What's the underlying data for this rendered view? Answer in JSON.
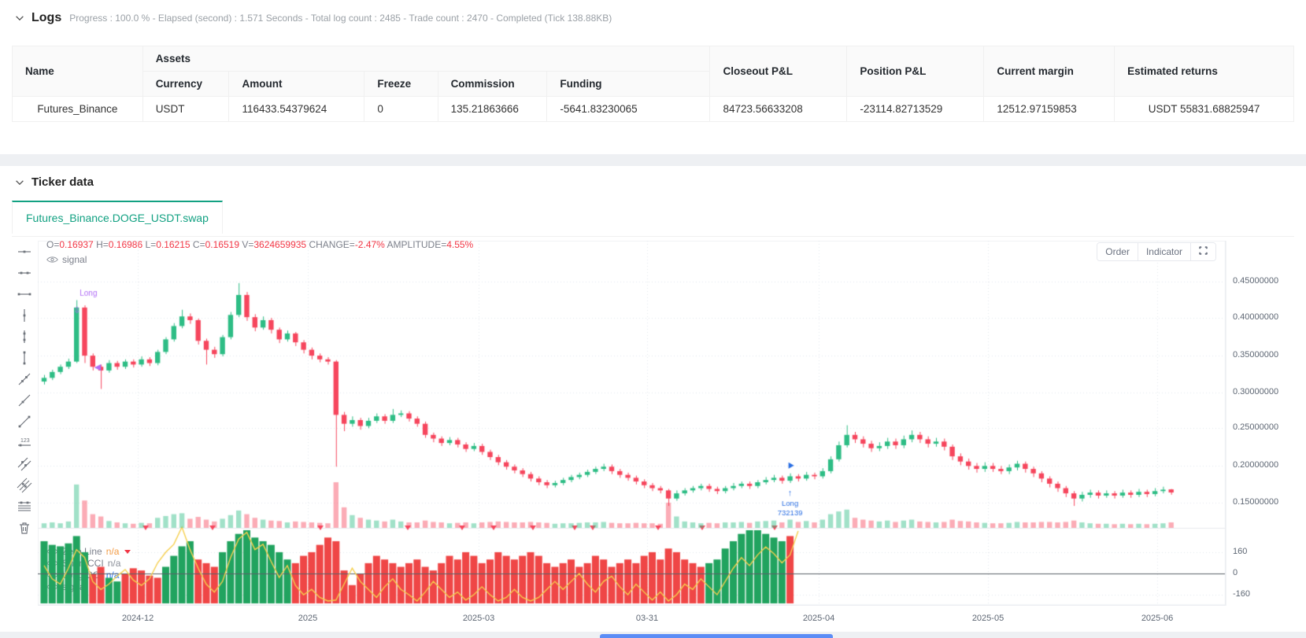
{
  "logs": {
    "title": "Logs",
    "subtitle": "Progress : 100.0 % - Elapsed (second) : 1.571 Seconds - Total log count : 2485 - Trade count : 2470 - Completed (Tick 138.88KB)"
  },
  "account_table": {
    "headers": {
      "name": "Name",
      "assets": "Assets",
      "currency": "Currency",
      "amount": "Amount",
      "freeze": "Freeze",
      "commission": "Commission",
      "funding": "Funding",
      "closeout_pnl": "Closeout P&L",
      "position_pnl": "Position P&L",
      "current_margin": "Current margin",
      "estimated_returns": "Estimated returns"
    },
    "row": {
      "name": "Futures_Binance",
      "currency": "USDT",
      "amount": "116433.54379624",
      "freeze": "0",
      "commission": "135.21863666",
      "funding": "-5641.83230065",
      "closeout_pnl": "84723.56633208",
      "position_pnl": "-23114.82713529",
      "current_margin": "12512.97159853",
      "estimated_returns": "USDT 55831.68825947"
    }
  },
  "ticker": {
    "title": "Ticker data",
    "tab": "Futures_Binance.DOGE_USDT.swap"
  },
  "chart": {
    "ohlc": {
      "o": "O=",
      "ov": "0.16937",
      "h": "H=",
      "hv": "0.16986",
      "l": "L=",
      "lv": "0.16215",
      "c": "C=",
      "cv": "0.16519",
      "v": "V=",
      "vv": "3624659935",
      "chg": "CHANGE=",
      "chgv": "-2.47%",
      "amp": "AMPLITUDE=",
      "ampv": "4.55%"
    },
    "signal_label": "signal",
    "buttons": {
      "order": "Order",
      "indicator": "Indicator"
    },
    "price_axis": [
      "0.45000000",
      "0.40000000",
      "0.35000000",
      "0.30000000",
      "0.25000000",
      "0.20000000",
      "0.15000000"
    ],
    "cci_axis": [
      "160",
      "0",
      "-160"
    ],
    "x_axis": [
      "2024-12",
      "2025",
      "2025-03",
      "03-31",
      "2025-04",
      "2025-05",
      "2025-06"
    ],
    "indicator_legend": [
      {
        "name": "Zero Line",
        "value": "n/a"
      },
      {
        "name": "Short CCI",
        "value": "n/a"
      },
      {
        "name": "Long CCI",
        "value": "n/a"
      },
      {
        "name": "signal",
        "value": ""
      }
    ],
    "colors": {
      "up": "#2ebd85",
      "down": "#f6465d",
      "vol_up": "rgba(46,189,133,0.45)",
      "vol_down": "rgba(246,70,93,0.45)",
      "cci_green": "#21a35f",
      "cci_red": "#ef4646",
      "cci_line": "#f5cf4d",
      "purple": "#b06df5",
      "blue": "#2b6fe3",
      "grid": "#e3e7ec",
      "zero_line": "#5b6168"
    }
  },
  "chart_data": {
    "type": "candlestick",
    "symbol": "Futures_Binance.DOGE_USDT.swap",
    "x_range": [
      "2024-11",
      "2025-06"
    ],
    "price_range": [
      0.13,
      0.47
    ],
    "cci_range": [
      -260,
      380
    ],
    "note": "values in candles are [open, high, low, close, relative_volume]",
    "candles": [
      [
        0.315,
        0.324,
        0.311,
        0.32,
        0.1
      ],
      [
        0.32,
        0.331,
        0.317,
        0.328,
        0.12
      ],
      [
        0.328,
        0.338,
        0.325,
        0.335,
        0.1
      ],
      [
        0.335,
        0.346,
        0.332,
        0.342,
        0.14
      ],
      [
        0.342,
        0.425,
        0.34,
        0.415,
        0.95
      ],
      [
        0.415,
        0.418,
        0.34,
        0.35,
        0.6
      ],
      [
        0.35,
        0.353,
        0.33,
        0.335,
        0.3
      ],
      [
        0.335,
        0.338,
        0.305,
        0.33,
        0.25
      ],
      [
        0.33,
        0.344,
        0.327,
        0.34,
        0.15
      ],
      [
        0.34,
        0.343,
        0.331,
        0.335,
        0.12
      ],
      [
        0.335,
        0.345,
        0.332,
        0.342,
        0.1
      ],
      [
        0.342,
        0.345,
        0.334,
        0.338,
        0.09
      ],
      [
        0.338,
        0.349,
        0.335,
        0.345,
        0.11
      ],
      [
        0.345,
        0.348,
        0.336,
        0.34,
        0.1
      ],
      [
        0.34,
        0.358,
        0.337,
        0.355,
        0.22
      ],
      [
        0.355,
        0.375,
        0.352,
        0.372,
        0.26
      ],
      [
        0.372,
        0.394,
        0.369,
        0.39,
        0.3
      ],
      [
        0.39,
        0.412,
        0.387,
        0.403,
        0.32
      ],
      [
        0.403,
        0.407,
        0.393,
        0.398,
        0.2
      ],
      [
        0.398,
        0.4,
        0.365,
        0.37,
        0.24
      ],
      [
        0.37,
        0.373,
        0.338,
        0.358,
        0.18
      ],
      [
        0.358,
        0.362,
        0.347,
        0.352,
        0.14
      ],
      [
        0.352,
        0.378,
        0.349,
        0.375,
        0.2
      ],
      [
        0.375,
        0.409,
        0.372,
        0.405,
        0.28
      ],
      [
        0.405,
        0.448,
        0.402,
        0.432,
        0.38
      ],
      [
        0.432,
        0.436,
        0.397,
        0.402,
        0.3
      ],
      [
        0.402,
        0.406,
        0.383,
        0.388,
        0.22
      ],
      [
        0.388,
        0.403,
        0.385,
        0.398,
        0.18
      ],
      [
        0.398,
        0.401,
        0.38,
        0.385,
        0.16
      ],
      [
        0.385,
        0.388,
        0.367,
        0.372,
        0.15
      ],
      [
        0.372,
        0.384,
        0.369,
        0.38,
        0.12
      ],
      [
        0.38,
        0.382,
        0.363,
        0.368,
        0.14
      ],
      [
        0.368,
        0.371,
        0.353,
        0.358,
        0.13
      ],
      [
        0.358,
        0.361,
        0.345,
        0.35,
        0.12
      ],
      [
        0.35,
        0.353,
        0.341,
        0.345,
        0.11
      ],
      [
        0.345,
        0.348,
        0.338,
        0.342,
        0.1
      ],
      [
        0.342,
        0.344,
        0.2,
        0.27,
        1.0
      ],
      [
        0.27,
        0.274,
        0.248,
        0.258,
        0.45
      ],
      [
        0.258,
        0.268,
        0.254,
        0.263,
        0.28
      ],
      [
        0.263,
        0.266,
        0.25,
        0.255,
        0.22
      ],
      [
        0.255,
        0.266,
        0.252,
        0.262,
        0.18
      ],
      [
        0.262,
        0.272,
        0.259,
        0.268,
        0.16
      ],
      [
        0.268,
        0.271,
        0.258,
        0.262,
        0.14
      ],
      [
        0.262,
        0.278,
        0.259,
        0.27,
        0.18
      ],
      [
        0.27,
        0.276,
        0.267,
        0.272,
        0.14
      ],
      [
        0.272,
        0.275,
        0.261,
        0.265,
        0.12
      ],
      [
        0.265,
        0.268,
        0.254,
        0.258,
        0.12
      ],
      [
        0.258,
        0.261,
        0.239,
        0.243,
        0.16
      ],
      [
        0.243,
        0.246,
        0.233,
        0.238,
        0.13
      ],
      [
        0.238,
        0.241,
        0.228,
        0.232,
        0.12
      ],
      [
        0.232,
        0.24,
        0.229,
        0.236,
        0.1
      ],
      [
        0.236,
        0.239,
        0.226,
        0.23,
        0.11
      ],
      [
        0.23,
        0.233,
        0.22,
        0.224,
        0.12
      ],
      [
        0.224,
        0.232,
        0.221,
        0.228,
        0.1
      ],
      [
        0.228,
        0.231,
        0.216,
        0.22,
        0.12
      ],
      [
        0.22,
        0.223,
        0.209,
        0.213,
        0.13
      ],
      [
        0.213,
        0.216,
        0.202,
        0.206,
        0.14
      ],
      [
        0.206,
        0.209,
        0.196,
        0.2,
        0.13
      ],
      [
        0.2,
        0.203,
        0.191,
        0.195,
        0.12
      ],
      [
        0.195,
        0.198,
        0.186,
        0.19,
        0.12
      ],
      [
        0.19,
        0.193,
        0.18,
        0.184,
        0.13
      ],
      [
        0.184,
        0.187,
        0.175,
        0.179,
        0.12
      ],
      [
        0.179,
        0.182,
        0.171,
        0.175,
        0.11
      ],
      [
        0.175,
        0.181,
        0.172,
        0.178,
        0.09
      ],
      [
        0.178,
        0.185,
        0.175,
        0.182,
        0.1
      ],
      [
        0.182,
        0.189,
        0.179,
        0.186,
        0.1
      ],
      [
        0.186,
        0.192,
        0.183,
        0.189,
        0.11
      ],
      [
        0.189,
        0.196,
        0.186,
        0.193,
        0.12
      ],
      [
        0.193,
        0.2,
        0.19,
        0.197,
        0.12
      ],
      [
        0.197,
        0.204,
        0.194,
        0.2,
        0.13
      ],
      [
        0.2,
        0.203,
        0.19,
        0.194,
        0.11
      ],
      [
        0.194,
        0.197,
        0.185,
        0.189,
        0.1
      ],
      [
        0.189,
        0.192,
        0.181,
        0.185,
        0.1
      ],
      [
        0.185,
        0.188,
        0.176,
        0.18,
        0.11
      ],
      [
        0.18,
        0.183,
        0.171,
        0.175,
        0.1
      ],
      [
        0.175,
        0.178,
        0.167,
        0.171,
        0.1
      ],
      [
        0.171,
        0.174,
        0.164,
        0.168,
        0.09
      ],
      [
        0.168,
        0.17,
        0.147,
        0.157,
        0.55
      ],
      [
        0.157,
        0.168,
        0.154,
        0.164,
        0.25
      ],
      [
        0.164,
        0.171,
        0.161,
        0.168,
        0.14
      ],
      [
        0.168,
        0.174,
        0.165,
        0.171,
        0.12
      ],
      [
        0.171,
        0.177,
        0.168,
        0.174,
        0.1
      ],
      [
        0.174,
        0.177,
        0.166,
        0.17,
        0.11
      ],
      [
        0.17,
        0.173,
        0.163,
        0.167,
        0.1
      ],
      [
        0.167,
        0.174,
        0.164,
        0.171,
        0.12
      ],
      [
        0.171,
        0.178,
        0.168,
        0.174,
        0.12
      ],
      [
        0.174,
        0.18,
        0.171,
        0.177,
        0.13
      ],
      [
        0.177,
        0.18,
        0.17,
        0.174,
        0.11
      ],
      [
        0.174,
        0.182,
        0.171,
        0.179,
        0.14
      ],
      [
        0.179,
        0.186,
        0.176,
        0.182,
        0.15
      ],
      [
        0.182,
        0.189,
        0.179,
        0.185,
        0.16
      ],
      [
        0.185,
        0.188,
        0.177,
        0.181,
        0.12
      ],
      [
        0.181,
        0.191,
        0.178,
        0.187,
        0.18
      ],
      [
        0.187,
        0.19,
        0.18,
        0.184,
        0.13
      ],
      [
        0.184,
        0.193,
        0.181,
        0.189,
        0.15
      ],
      [
        0.189,
        0.192,
        0.183,
        0.187,
        0.12
      ],
      [
        0.187,
        0.198,
        0.184,
        0.194,
        0.18
      ],
      [
        0.194,
        0.214,
        0.191,
        0.21,
        0.3
      ],
      [
        0.21,
        0.234,
        0.207,
        0.229,
        0.36
      ],
      [
        0.229,
        0.256,
        0.226,
        0.243,
        0.4
      ],
      [
        0.243,
        0.247,
        0.232,
        0.237,
        0.22
      ],
      [
        0.237,
        0.241,
        0.226,
        0.231,
        0.18
      ],
      [
        0.231,
        0.235,
        0.22,
        0.225,
        0.16
      ],
      [
        0.225,
        0.233,
        0.221,
        0.228,
        0.14
      ],
      [
        0.228,
        0.239,
        0.224,
        0.234,
        0.16
      ],
      [
        0.234,
        0.238,
        0.224,
        0.229,
        0.13
      ],
      [
        0.229,
        0.242,
        0.225,
        0.237,
        0.16
      ],
      [
        0.237,
        0.249,
        0.233,
        0.243,
        0.18
      ],
      [
        0.243,
        0.247,
        0.232,
        0.237,
        0.14
      ],
      [
        0.237,
        0.241,
        0.226,
        0.231,
        0.13
      ],
      [
        0.231,
        0.239,
        0.227,
        0.234,
        0.12
      ],
      [
        0.234,
        0.238,
        0.222,
        0.227,
        0.13
      ],
      [
        0.227,
        0.23,
        0.209,
        0.214,
        0.18
      ],
      [
        0.214,
        0.218,
        0.202,
        0.207,
        0.15
      ],
      [
        0.207,
        0.211,
        0.196,
        0.201,
        0.14
      ],
      [
        0.201,
        0.205,
        0.192,
        0.197,
        0.12
      ],
      [
        0.197,
        0.206,
        0.193,
        0.201,
        0.11
      ],
      [
        0.201,
        0.205,
        0.193,
        0.197,
        0.1
      ],
      [
        0.197,
        0.201,
        0.19,
        0.194,
        0.1
      ],
      [
        0.194,
        0.203,
        0.19,
        0.199,
        0.11
      ],
      [
        0.199,
        0.208,
        0.195,
        0.204,
        0.13
      ],
      [
        0.204,
        0.207,
        0.192,
        0.197,
        0.12
      ],
      [
        0.197,
        0.2,
        0.186,
        0.191,
        0.12
      ],
      [
        0.191,
        0.194,
        0.179,
        0.184,
        0.13
      ],
      [
        0.184,
        0.187,
        0.172,
        0.177,
        0.13
      ],
      [
        0.177,
        0.18,
        0.166,
        0.171,
        0.12
      ],
      [
        0.171,
        0.174,
        0.159,
        0.164,
        0.13
      ],
      [
        0.164,
        0.167,
        0.147,
        0.157,
        0.16
      ],
      [
        0.157,
        0.166,
        0.153,
        0.162,
        0.12
      ],
      [
        0.162,
        0.169,
        0.158,
        0.165,
        0.1
      ],
      [
        0.165,
        0.168,
        0.157,
        0.161,
        0.09
      ],
      [
        0.161,
        0.168,
        0.158,
        0.164,
        0.09
      ],
      [
        0.164,
        0.167,
        0.157,
        0.161,
        0.08
      ],
      [
        0.161,
        0.169,
        0.158,
        0.165,
        0.09
      ],
      [
        0.165,
        0.168,
        0.158,
        0.162,
        0.08
      ],
      [
        0.162,
        0.17,
        0.159,
        0.166,
        0.09
      ],
      [
        0.166,
        0.169,
        0.159,
        0.163,
        0.08
      ],
      [
        0.163,
        0.171,
        0.16,
        0.167,
        0.09
      ],
      [
        0.167,
        0.173,
        0.164,
        0.169,
        0.1
      ],
      [
        0.16937,
        0.16986,
        0.16215,
        0.16519,
        0.12
      ]
    ],
    "cci_area": [
      0.85,
      0.8,
      0.78,
      0.82,
      0.92,
      0.7,
      0.4,
      0.5,
      0.35,
      0.3,
      0.4,
      0.48,
      0.45,
      0.38,
      0.35,
      0.5,
      0.65,
      0.78,
      0.85,
      0.6,
      0.55,
      0.5,
      0.7,
      0.85,
      0.95,
      1.0,
      0.9,
      0.85,
      0.8,
      0.7,
      0.6,
      0.55,
      0.65,
      0.7,
      0.8,
      0.9,
      0.85,
      0.45,
      0.25,
      0.4,
      0.55,
      0.65,
      0.6,
      0.55,
      0.5,
      0.55,
      0.6,
      0.5,
      0.45,
      0.55,
      0.65,
      0.6,
      0.7,
      0.65,
      0.55,
      0.6,
      0.7,
      0.65,
      0.6,
      0.65,
      0.7,
      0.65,
      0.55,
      0.5,
      0.55,
      0.6,
      0.5,
      0.55,
      0.65,
      0.6,
      0.5,
      0.55,
      0.6,
      0.55,
      0.65,
      0.7,
      0.6,
      0.75,
      0.7,
      0.6,
      0.55,
      0.5,
      0.55,
      0.6,
      0.75,
      0.85,
      0.95,
      1.0,
      1.0,
      0.95,
      0.9,
      0.85,
      0.92
    ],
    "cci_area_color": "ggggggrrggrrrrrggggrrrgggggggggrrrrrrrrrrrrrrrrrrrrrrrrrrrrrrrrrrrrrrrrrrrrrrrrrrrgggggggggg",
    "cci_line": [
      60,
      -40,
      -80,
      40,
      180,
      120,
      -60,
      -120,
      -80,
      -20,
      30,
      -50,
      -90,
      -40,
      80,
      160,
      220,
      350,
      180,
      40,
      -80,
      -140,
      -60,
      120,
      260,
      310,
      180,
      220,
      90,
      -30,
      60,
      -90,
      -160,
      -120,
      -180,
      -260,
      -200,
      -80,
      40,
      -60,
      -120,
      -180,
      -100,
      -40,
      -120,
      -160,
      -220,
      -140,
      -60,
      -120,
      -180,
      -140,
      -200,
      -160,
      -100,
      -160,
      -220,
      -180,
      -120,
      -180,
      -240,
      -180,
      -120,
      -60,
      -120,
      -60,
      0,
      -80,
      -140,
      -60,
      -20,
      -100,
      -160,
      -80,
      -140,
      -200,
      -140,
      -220,
      -160,
      -80,
      -120,
      -40,
      -100,
      -160,
      -60,
      40,
      120,
      60,
      140,
      200,
      150,
      80,
      140,
      320
    ],
    "annotations": {
      "purple_long": {
        "index": 4,
        "label": "Long"
      },
      "blue_long": {
        "index": 92,
        "label": "Long",
        "sub": "732139"
      },
      "sell_triangles_x": [
        137,
        222,
        359,
        470,
        539,
        579,
        629,
        682,
        705,
        788,
        844,
        936
      ]
    }
  }
}
